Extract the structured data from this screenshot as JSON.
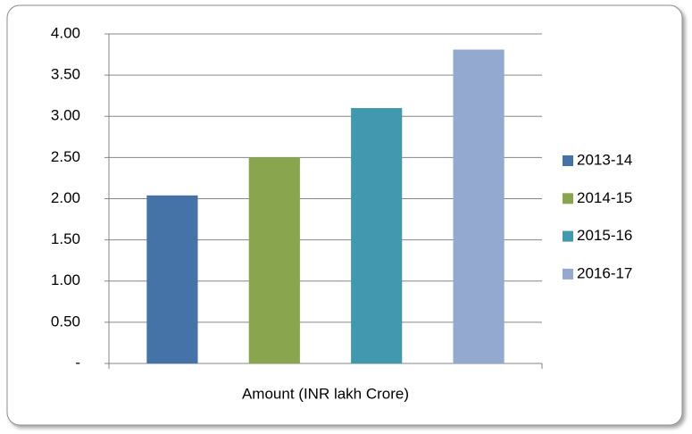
{
  "chart_data": {
    "type": "bar",
    "categories": [
      "Amount (INR lakh Crore)"
    ],
    "series": [
      {
        "name": "2013-14",
        "color": "#4573a7",
        "values": [
          2.04
        ]
      },
      {
        "name": "2014-15",
        "color": "#89a54e",
        "values": [
          2.5
        ]
      },
      {
        "name": "2015-16",
        "color": "#4198af",
        "values": [
          3.1
        ]
      },
      {
        "name": "2016-17",
        "color": "#93a9cf",
        "values": [
          3.81
        ]
      }
    ],
    "ylim": [
      0,
      4
    ],
    "yticks": [
      {
        "value": 0,
        "label": "-"
      },
      {
        "value": 0.5,
        "label": "0.50"
      },
      {
        "value": 1,
        "label": "1.00"
      },
      {
        "value": 1.5,
        "label": "1.50"
      },
      {
        "value": 2,
        "label": "2.00"
      },
      {
        "value": 2.5,
        "label": "2.50"
      },
      {
        "value": 3,
        "label": "3.00"
      },
      {
        "value": 3.5,
        "label": "3.50"
      },
      {
        "value": 4,
        "label": "4.00"
      }
    ],
    "grid": true,
    "legend": "right"
  }
}
